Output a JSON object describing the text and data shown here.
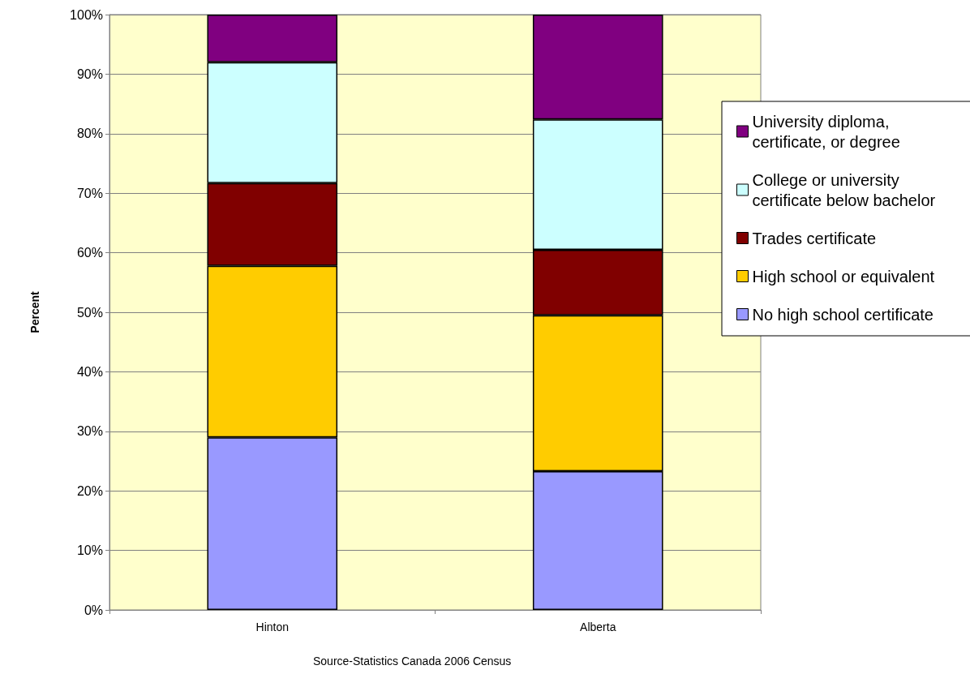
{
  "chart_data": {
    "type": "bar",
    "stacked": true,
    "ylabel": "Percent",
    "categories": [
      "Hinton",
      "Alberta"
    ],
    "series": [
      {
        "name": "No high school certificate",
        "color": "#9999ff",
        "values": [
          29,
          23.3
        ]
      },
      {
        "name": "High school or equivalent",
        "color": "#ffcc00",
        "values": [
          28.8,
          26.2
        ]
      },
      {
        "name": "Trades certificate",
        "color": "#800000",
        "values": [
          13.9,
          11
        ]
      },
      {
        "name": "College or university certificate below bachelor",
        "color": "#ccffff",
        "values": [
          20.3,
          21.9
        ]
      },
      {
        "name": "University diploma, certificate, or degree",
        "color": "#800080",
        "values": [
          8,
          17.6
        ]
      }
    ],
    "ylim": [
      0,
      100
    ],
    "yticks": [
      {
        "value": 0,
        "label": "0%"
      },
      {
        "value": 10,
        "label": "10%"
      },
      {
        "value": 20,
        "label": "20%"
      },
      {
        "value": 30,
        "label": "30%"
      },
      {
        "value": 40,
        "label": "40%"
      },
      {
        "value": 50,
        "label": "50%"
      },
      {
        "value": 60,
        "label": "60%"
      },
      {
        "value": 70,
        "label": "70%"
      },
      {
        "value": 80,
        "label": "80%"
      },
      {
        "value": 90,
        "label": "90%"
      },
      {
        "value": 100,
        "label": "100%"
      }
    ],
    "grid": "y",
    "legend": "right",
    "annotations": [
      "Source-Statistics Canada 2006 Census"
    ]
  }
}
